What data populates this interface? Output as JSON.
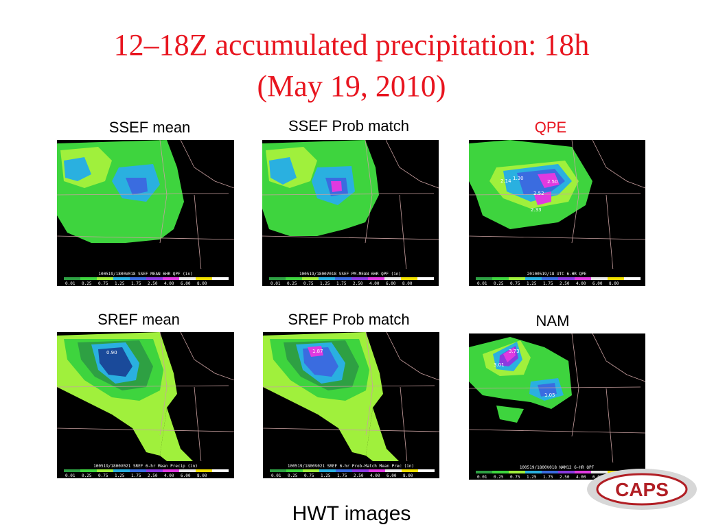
{
  "slide": {
    "title_line1": "12–18Z accumulated precipitation: 18h",
    "title_line2": "(May 19, 2010)",
    "footer": "HWT images",
    "logo_text": "CAPS"
  },
  "legend_ticks": [
    "0.01",
    "0.25",
    "0.75",
    "1.25",
    "1.75",
    "2.50",
    "4.00",
    "6.00",
    "8.00"
  ],
  "legend_colors": [
    "#2ea043",
    "#3ed43e",
    "#a0f03c",
    "#2ab0e0",
    "#3a6ce0",
    "#8a3ae0",
    "#e03ae0",
    "#e8e8e8",
    "#f0e000",
    "#ffffff"
  ],
  "panels": [
    {
      "label": "SSEF mean",
      "caption": "100519/1800V018 SSEF MEAN 6HR QPF (in)",
      "values": []
    },
    {
      "label": "SSEF Prob match",
      "caption": "100519/1800V018 SSEF PM-MEAN 6HR QPF (in)",
      "values": []
    },
    {
      "label": "QPE",
      "caption": "20100519/18 UTC 6-HR QPE",
      "values": [
        "2.14",
        "1.30",
        "2.50",
        "2.52",
        "2.33"
      ]
    },
    {
      "label": "SREF mean",
      "caption": "100519/1800V021 SREF 6-hr Mean Precip (in)",
      "values": [
        "0.90"
      ]
    },
    {
      "label": "SREF Prob match",
      "caption": "100519/1800V021 SREF 6-hr Prob-Match Mean Prec (in)",
      "values": [
        "1.87"
      ]
    },
    {
      "label": "NAM",
      "caption": "100519/1800V018 NAM12 6-HR QPF",
      "values": [
        "3.73",
        "3.01",
        "1.05"
      ]
    }
  ]
}
